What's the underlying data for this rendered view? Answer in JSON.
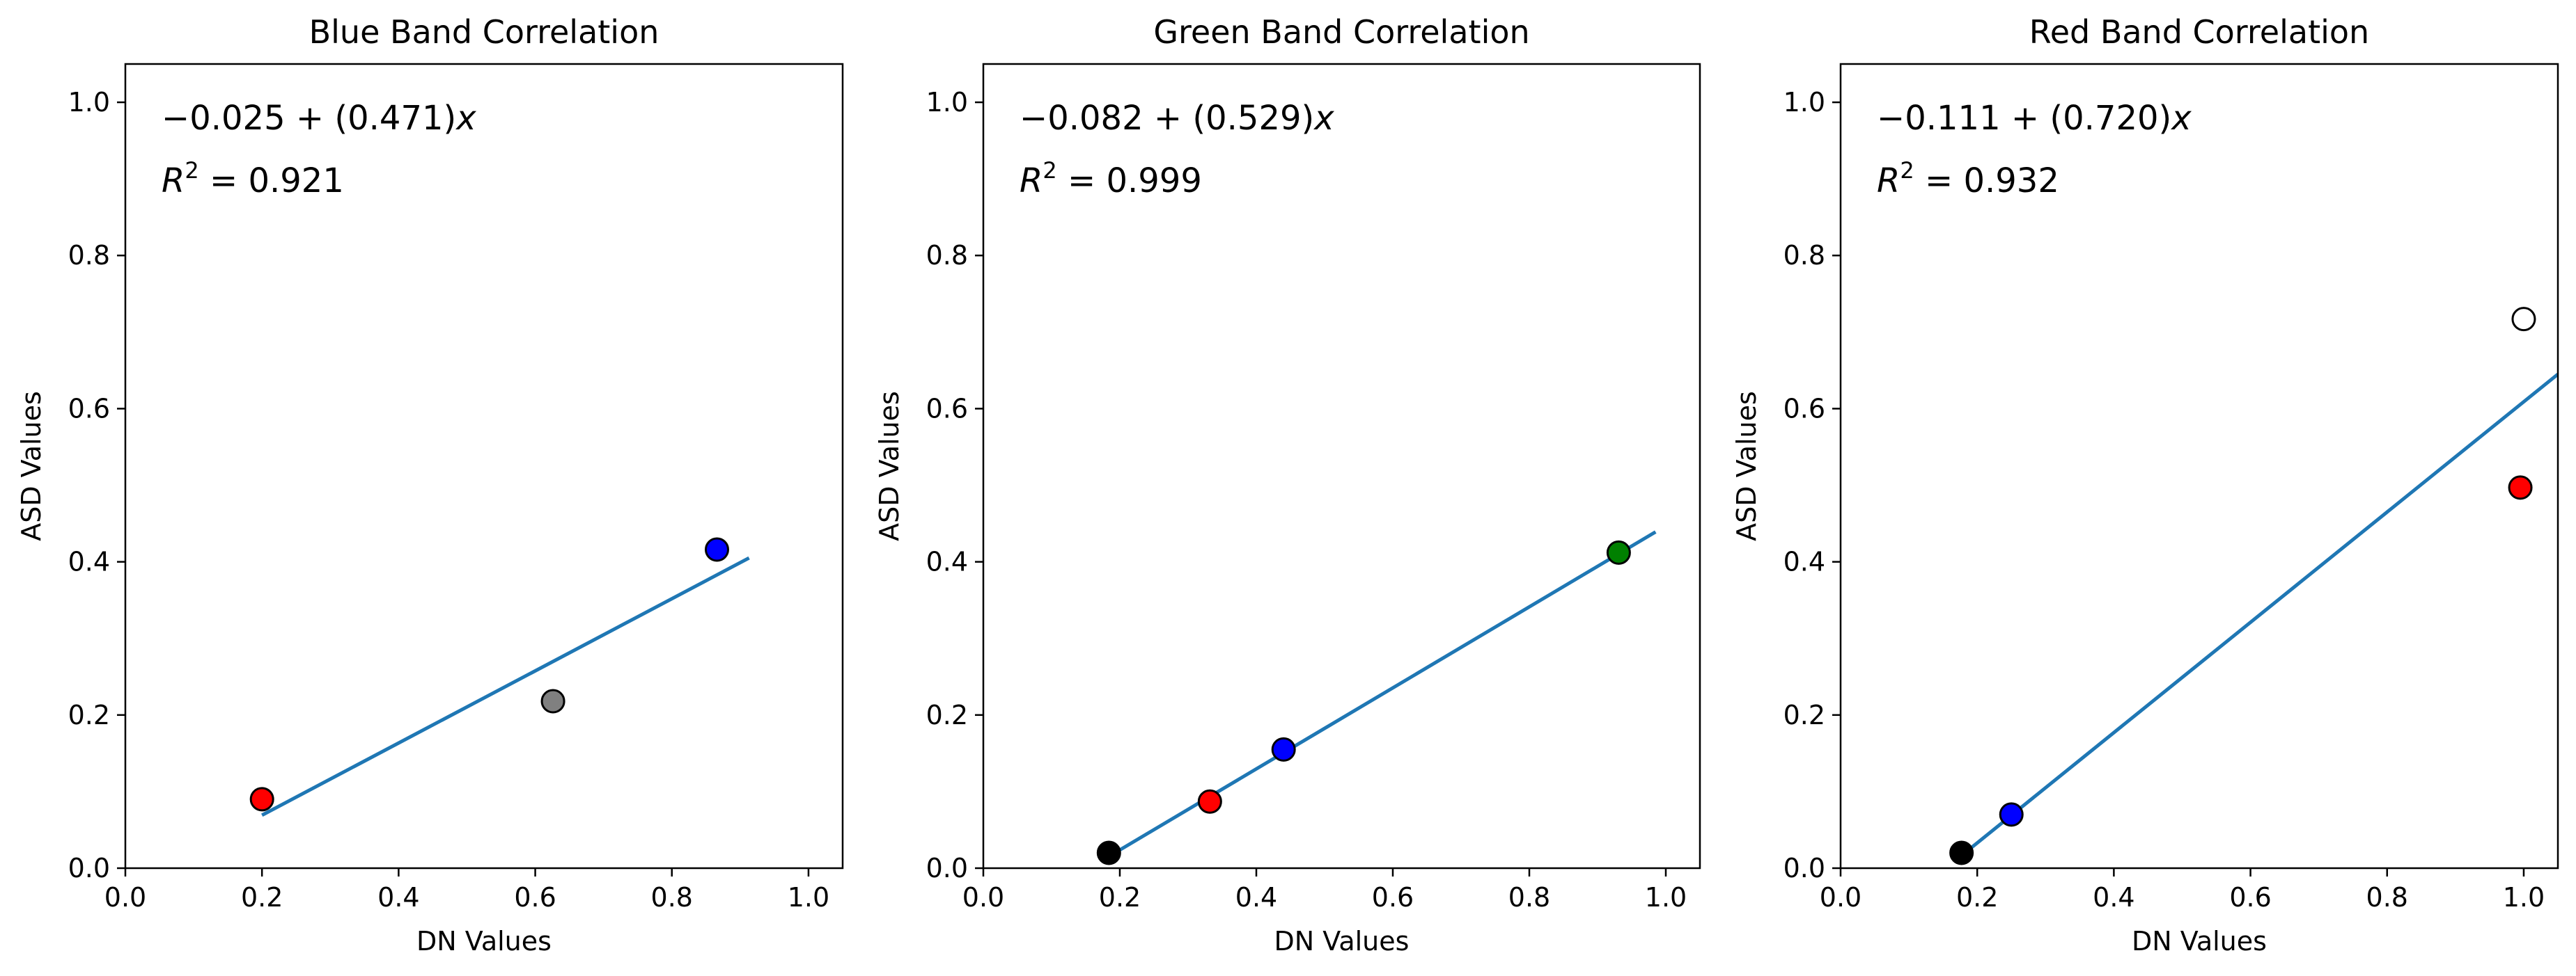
{
  "chart_data": [
    {
      "type": "scatter",
      "title": "Blue Band Correlation",
      "xlabel": "DN Values",
      "ylabel": "ASD Values",
      "xlim": [
        0.0,
        1.05
      ],
      "ylim": [
        0.0,
        1.05
      ],
      "xticks": [
        "0.0",
        "0.2",
        "0.4",
        "0.6",
        "0.8",
        "1.0"
      ],
      "yticks": [
        "0.0",
        "0.2",
        "0.4",
        "0.6",
        "0.8",
        "1.0"
      ],
      "equation": {
        "intercept": "−0.025",
        "slope": "(0.471)",
        "var": "x"
      },
      "r2": {
        "label": "R",
        "sup": "2",
        "value": "= 0.921"
      },
      "points": [
        {
          "x": 0.2,
          "y": 0.09,
          "color": "#ff0000"
        },
        {
          "x": 0.626,
          "y": 0.218,
          "color": "#808080"
        },
        {
          "x": 0.866,
          "y": 0.416,
          "color": "#0000ff"
        }
      ],
      "fit": {
        "x": [
          0.2,
          0.913
        ],
        "intercept": -0.025,
        "slope": 0.471
      }
    },
    {
      "type": "scatter",
      "title": "Green Band Correlation",
      "xlabel": "DN Values",
      "ylabel": "ASD Values",
      "xlim": [
        0.0,
        1.05
      ],
      "ylim": [
        0.0,
        1.05
      ],
      "xticks": [
        "0.0",
        "0.2",
        "0.4",
        "0.6",
        "0.8",
        "1.0"
      ],
      "yticks": [
        "0.0",
        "0.2",
        "0.4",
        "0.6",
        "0.8",
        "1.0"
      ],
      "equation": {
        "intercept": "−0.082",
        "slope": "(0.529)",
        "var": "x"
      },
      "r2": {
        "label": "R",
        "sup": "2",
        "value": "= 0.999"
      },
      "points": [
        {
          "x": 0.184,
          "y": 0.02,
          "color": "#000000"
        },
        {
          "x": 0.332,
          "y": 0.087,
          "color": "#ff0000"
        },
        {
          "x": 0.44,
          "y": 0.155,
          "color": "#0000ff"
        },
        {
          "x": 0.931,
          "y": 0.412,
          "color": "#008000"
        }
      ],
      "fit": {
        "x": [
          0.184,
          0.985
        ],
        "intercept": -0.082,
        "slope": 0.529
      }
    },
    {
      "type": "scatter",
      "title": "Red Band Correlation",
      "xlabel": "DN Values",
      "ylabel": "ASD Values",
      "xlim": [
        0.0,
        1.05
      ],
      "ylim": [
        0.0,
        1.05
      ],
      "xticks": [
        "0.0",
        "0.2",
        "0.4",
        "0.6",
        "0.8",
        "1.0"
      ],
      "yticks": [
        "0.0",
        "0.2",
        "0.4",
        "0.6",
        "0.8",
        "1.0"
      ],
      "equation": {
        "intercept": "−0.111",
        "slope": "(0.720)",
        "var": "x"
      },
      "r2": {
        "label": "R",
        "sup": "2",
        "value": "= 0.932"
      },
      "points": [
        {
          "x": 0.177,
          "y": 0.02,
          "color": "#000000"
        },
        {
          "x": 0.25,
          "y": 0.07,
          "color": "#0000ff"
        },
        {
          "x": 0.995,
          "y": 0.497,
          "color": "#ff0000"
        },
        {
          "x": 1.0,
          "y": 0.717,
          "color": "#ffffff"
        }
      ],
      "fit": {
        "x": [
          0.177,
          1.05
        ],
        "intercept": -0.111,
        "slope": 0.72
      }
    }
  ],
  "colors": {
    "fit_line": "#1f77b4",
    "axes": "#000000",
    "marker_edge": "#000000"
  }
}
